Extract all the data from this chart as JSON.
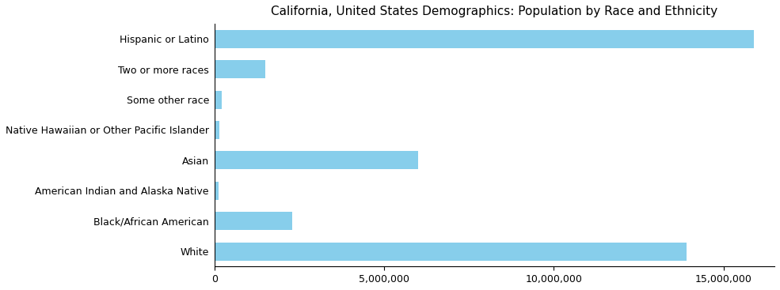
{
  "title": "California, United States Demographics: Population by Race and Ethnicity",
  "categories": [
    "White",
    "Black/African American",
    "American Indian and Alaska Native",
    "Asian",
    "Native Hawaiian or Other Pacific Islander",
    "Some other race",
    "Two or more races",
    "Hispanic or Latino"
  ],
  "values": [
    13900000,
    2300000,
    120000,
    6000000,
    150000,
    220000,
    1500000,
    15900000
  ],
  "bar_color": "#87CEEB",
  "background_color": "#ffffff",
  "xlim": [
    0,
    16500000
  ],
  "title_fontsize": 11,
  "tick_fontsize": 9,
  "figsize": [
    9.85,
    3.67
  ],
  "dpi": 100
}
